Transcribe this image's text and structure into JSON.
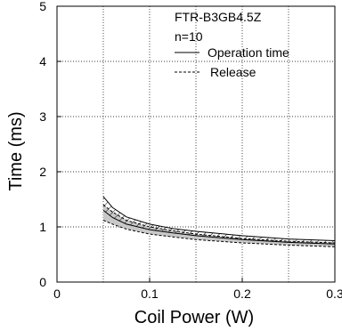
{
  "chart_data": {
    "type": "area",
    "title": "",
    "xlabel": "Coil Power (W)",
    "ylabel": "Time (ms)",
    "xlim": [
      0,
      0.3
    ],
    "ylim": [
      0,
      5
    ],
    "x_ticks": [
      "0",
      "0.1",
      "0.2",
      "0.3"
    ],
    "y_ticks": [
      "0",
      "1",
      "2",
      "3",
      "4",
      "5"
    ],
    "grid": true,
    "legend_position": "top-right",
    "annotations": [
      "FTR-B3GB4.5Z",
      "n=10"
    ],
    "legend": [
      {
        "label": "Operation time",
        "style": "solid"
      },
      {
        "label": "Release",
        "style": "dashed"
      }
    ],
    "series": [
      {
        "name": "Operation time",
        "x": [
          0.05,
          0.06,
          0.075,
          0.1,
          0.125,
          0.15,
          0.2,
          0.25,
          0.3
        ],
        "upper": [
          1.55,
          1.35,
          1.18,
          1.05,
          0.97,
          0.92,
          0.84,
          0.78,
          0.75
        ],
        "lower": [
          1.3,
          1.17,
          1.05,
          0.95,
          0.89,
          0.84,
          0.77,
          0.72,
          0.69
        ]
      },
      {
        "name": "Release",
        "x": [
          0.05,
          0.06,
          0.075,
          0.1,
          0.125,
          0.15,
          0.2,
          0.25,
          0.3
        ],
        "upper": [
          1.4,
          1.27,
          1.12,
          1.0,
          0.93,
          0.87,
          0.79,
          0.74,
          0.71
        ],
        "lower": [
          1.12,
          1.05,
          0.96,
          0.87,
          0.82,
          0.77,
          0.71,
          0.67,
          0.64
        ]
      }
    ],
    "colors": {
      "band_fill": "#c8c8c8",
      "line": "#000000",
      "grid": "#000000"
    }
  }
}
